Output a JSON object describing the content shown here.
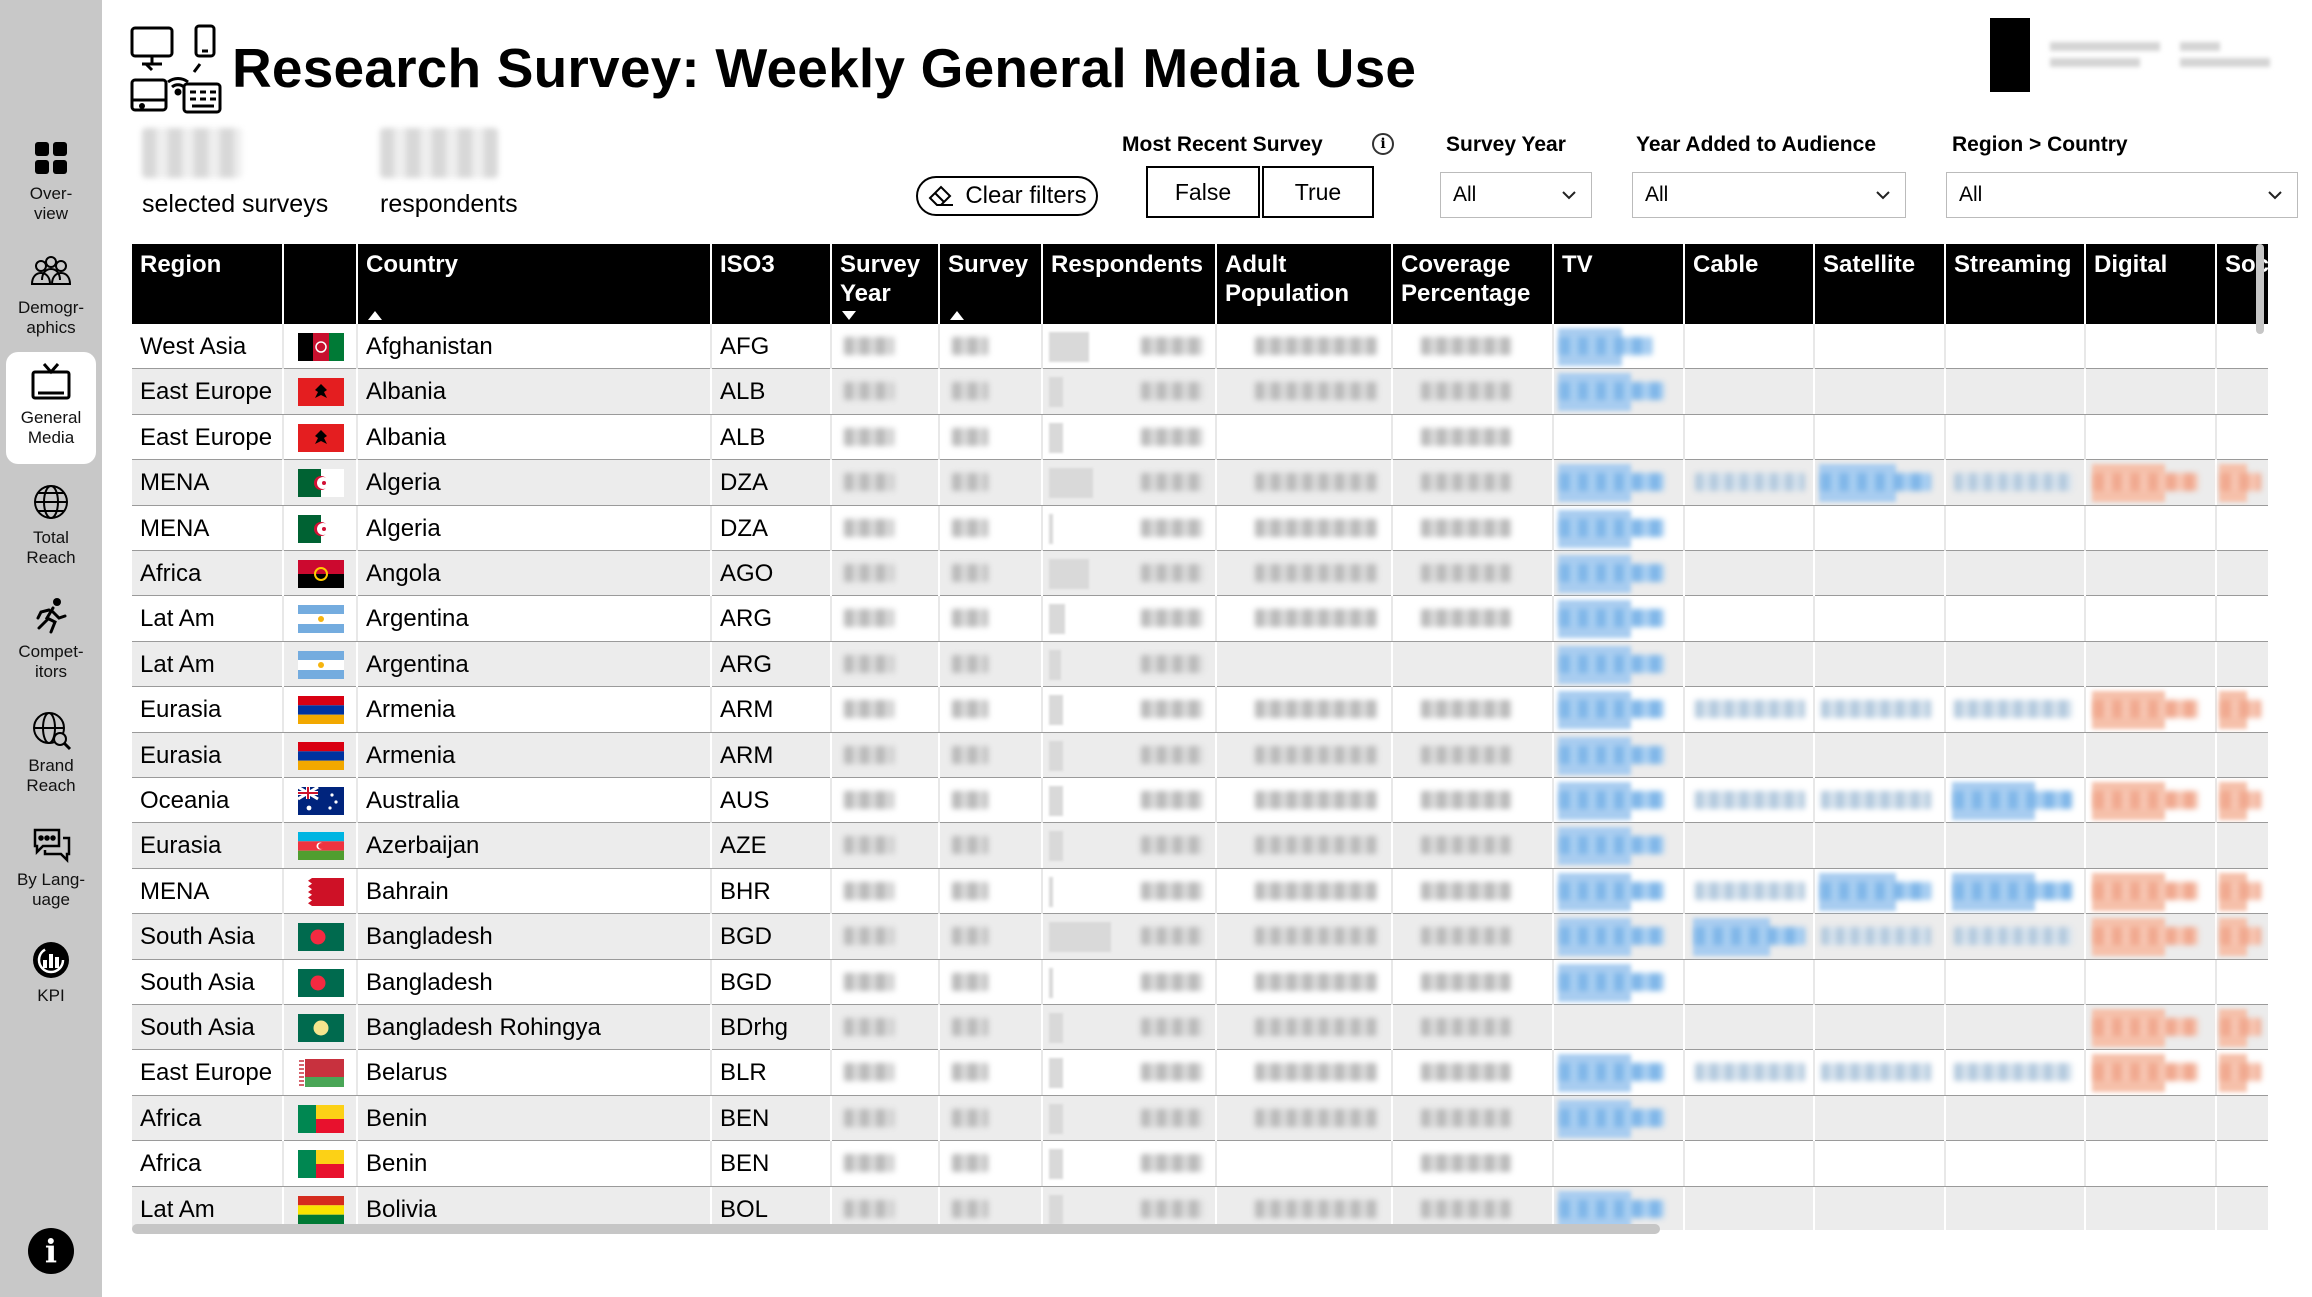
{
  "page": {
    "title": "Research Survey: Weekly General Media Use"
  },
  "sidebar": {
    "items": [
      {
        "label": "Over-\nview",
        "icon": "overview-grid-icon"
      },
      {
        "label": "Demogr-\naphics",
        "icon": "people-group-icon"
      },
      {
        "label": "General\nMedia",
        "icon": "tv-icon"
      },
      {
        "label": "Total\nReach",
        "icon": "globe-icon"
      },
      {
        "label": "Compet-\nitors",
        "icon": "runner-icon"
      },
      {
        "label": "Brand\nReach",
        "icon": "globe-search-icon"
      },
      {
        "label": "By Lang-\nuage",
        "icon": "speech-bubbles-icon"
      },
      {
        "label": "KPI",
        "icon": "gauge-icon"
      }
    ],
    "active_index": 2,
    "info_icon": "info-icon"
  },
  "kpis": {
    "surveys_label": "selected surveys",
    "respondents_label": "respondents"
  },
  "filters": {
    "clear_label": "Clear filters",
    "most_recent_title": "Most Recent Survey",
    "most_recent_options": [
      "False",
      "True"
    ],
    "survey_year_title": "Survey Year",
    "survey_year_value": "All",
    "year_added_title": "Year Added to Audience",
    "year_added_value": "All",
    "region_country_title": "Region > Country",
    "region_country_value": "All"
  },
  "table": {
    "columns": [
      "Region",
      "",
      "Country",
      "ISO3",
      "Survey Year",
      "Survey",
      "Respondents",
      "Adult Population",
      "Coverage Percentage",
      "TV",
      "Cable",
      "Satellite",
      "Streaming",
      "Digital",
      "Soc"
    ],
    "rows": [
      {
        "region": "West Asia",
        "country": "Afghanistan",
        "iso3": "AFG",
        "flag": "AFG"
      },
      {
        "region": "East Europe",
        "country": "Albania",
        "iso3": "ALB",
        "flag": "ALB"
      },
      {
        "region": "East Europe",
        "country": "Albania",
        "iso3": "ALB",
        "flag": "ALB"
      },
      {
        "region": "MENA",
        "country": "Algeria",
        "iso3": "DZA",
        "flag": "DZA"
      },
      {
        "region": "MENA",
        "country": "Algeria",
        "iso3": "DZA",
        "flag": "DZA"
      },
      {
        "region": "Africa",
        "country": "Angola",
        "iso3": "AGO",
        "flag": "AGO"
      },
      {
        "region": "Lat Am",
        "country": "Argentina",
        "iso3": "ARG",
        "flag": "ARG"
      },
      {
        "region": "Lat Am",
        "country": "Argentina",
        "iso3": "ARG",
        "flag": "ARG"
      },
      {
        "region": "Eurasia",
        "country": "Armenia",
        "iso3": "ARM",
        "flag": "ARM"
      },
      {
        "region": "Eurasia",
        "country": "Armenia",
        "iso3": "ARM",
        "flag": "ARM"
      },
      {
        "region": "Oceania",
        "country": "Australia",
        "iso3": "AUS",
        "flag": "AUS"
      },
      {
        "region": "Eurasia",
        "country": "Azerbaijan",
        "iso3": "AZE",
        "flag": "AZE"
      },
      {
        "region": "MENA",
        "country": "Bahrain",
        "iso3": "BHR",
        "flag": "BHR"
      },
      {
        "region": "South Asia",
        "country": "Bangladesh",
        "iso3": "BGD",
        "flag": "BGD"
      },
      {
        "region": "South Asia",
        "country": "Bangladesh",
        "iso3": "BGD",
        "flag": "BGD"
      },
      {
        "region": "South Asia",
        "country": "Bangladesh Rohingya",
        "iso3": "BDrhg",
        "flag": "BDrhg"
      },
      {
        "region": "East Europe",
        "country": "Belarus",
        "iso3": "BLR",
        "flag": "BLR"
      },
      {
        "region": "Africa",
        "country": "Benin",
        "iso3": "BEN",
        "flag": "BEN"
      },
      {
        "region": "Africa",
        "country": "Benin",
        "iso3": "BEN",
        "flag": "BEN"
      },
      {
        "region": "Lat Am",
        "country": "Bolivia",
        "iso3": "BOL",
        "flag": "BOL"
      }
    ]
  }
}
